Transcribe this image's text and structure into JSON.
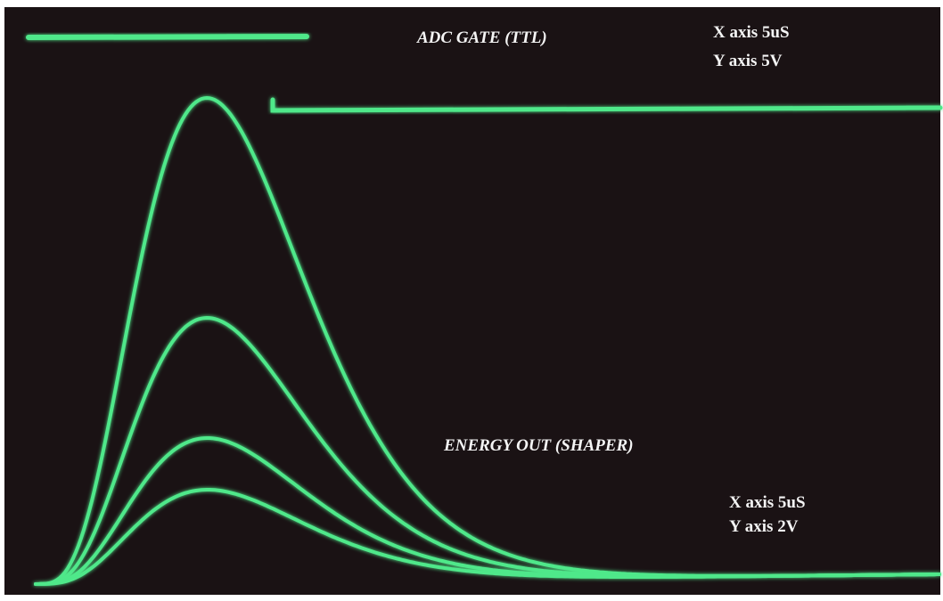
{
  "adc_gate": {
    "title": "ADC GATE (TTL)",
    "scale": [
      "X axis 5uS",
      "Y axis 5V"
    ]
  },
  "energy_out": {
    "title": "ENERGY OUT (SHAPER)",
    "scale": [
      "X axis 5uS",
      "Y axis 2V"
    ]
  }
}
